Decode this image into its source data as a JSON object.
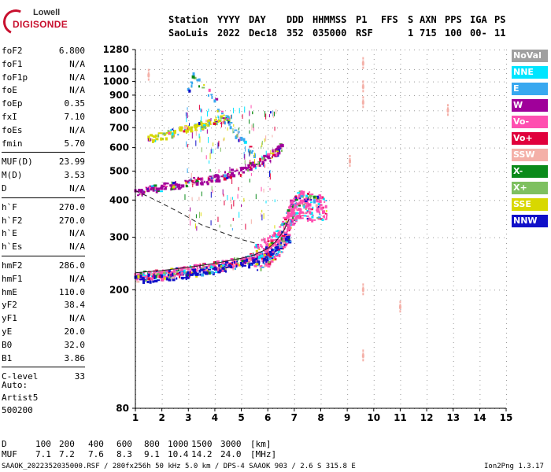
{
  "logo": {
    "line1": "Lowell",
    "line2": "DIGISONDE"
  },
  "header": {
    "labels": [
      "Station",
      "YYYY",
      "DAY",
      "DDD",
      "HHMMSS",
      "P1",
      "FFS",
      "S",
      "AXN",
      "PPS",
      "IGA",
      "PS"
    ],
    "values": [
      "SaoLuis",
      "2022",
      "Dec18",
      "352",
      "035000",
      "RSF",
      "1",
      "715",
      "100",
      "00-",
      "11"
    ]
  },
  "params": [
    {
      "name": "foF2",
      "value": "6.800"
    },
    {
      "name": "foF1",
      "value": "N/A"
    },
    {
      "name": "foF1p",
      "value": "N/A"
    },
    {
      "name": "foE",
      "value": "N/A"
    },
    {
      "name": "foEp",
      "value": "0.35"
    },
    {
      "name": "fxI",
      "value": "7.10"
    },
    {
      "name": "foEs",
      "value": "N/A"
    },
    {
      "name": "fmin",
      "value": "5.70"
    },
    {
      "name": "MUF(D)",
      "value": "23.99"
    },
    {
      "name": "M(D)",
      "value": "3.53"
    },
    {
      "name": "D",
      "value": "N/A"
    },
    {
      "name": "h`F",
      "value": "270.0"
    },
    {
      "name": "h`F2",
      "value": "270.0"
    },
    {
      "name": "h`E",
      "value": "N/A"
    },
    {
      "name": "h`Es",
      "value": "N/A"
    },
    {
      "name": "hmF2",
      "value": "286.0"
    },
    {
      "name": "hmF1",
      "value": "N/A"
    },
    {
      "name": "hmE",
      "value": "110.0"
    },
    {
      "name": "yF2",
      "value": "38.4"
    },
    {
      "name": "yF1",
      "value": "N/A"
    },
    {
      "name": "yE",
      "value": "20.0"
    },
    {
      "name": "B0",
      "value": "32.0"
    },
    {
      "name": "B1",
      "value": "3.86"
    },
    {
      "name": "C-level",
      "value": "33"
    }
  ],
  "auto": {
    "line1": "Auto:",
    "line2": "Artist5",
    "line3": "500200"
  },
  "legend": [
    {
      "label": "NoVal",
      "color": "#a0a0a0"
    },
    {
      "label": "NNE",
      "color": "#00e5ff"
    },
    {
      "label": "E",
      "color": "#38a8f0"
    },
    {
      "label": "W",
      "color": "#a0009a"
    },
    {
      "label": "Vo-",
      "color": "#ff4fb0"
    },
    {
      "label": "Vo+",
      "color": "#e0003c"
    },
    {
      "label": "SSW",
      "color": "#f4b0a8"
    },
    {
      "label": "X-",
      "color": "#0a8a1a"
    },
    {
      "label": "X+",
      "color": "#7ec060"
    },
    {
      "label": "SSE",
      "color": "#d8d800"
    },
    {
      "label": "NNW",
      "color": "#1010c8"
    }
  ],
  "chart_data": {
    "type": "scatter",
    "title": "",
    "xlabel": "",
    "ylabel": "",
    "xlim": [
      1,
      15
    ],
    "ylim": [
      80,
      1280
    ],
    "x_ticks": [
      1,
      2,
      3,
      4,
      5,
      6,
      7,
      8,
      9,
      10,
      11,
      12,
      13,
      14,
      15
    ],
    "y_ticks": [
      80,
      200,
      300,
      400,
      500,
      600,
      700,
      800,
      900,
      1000,
      1100,
      1280
    ],
    "y_scale": "log",
    "series": [
      {
        "trace": "F2 o-trace",
        "color": "#ff4fb0",
        "points": [
          [
            1.0,
            225
          ],
          [
            2.0,
            228
          ],
          [
            3.0,
            235
          ],
          [
            4.0,
            243
          ],
          [
            5.0,
            252
          ],
          [
            5.6,
            262
          ],
          [
            6.0,
            272
          ],
          [
            6.4,
            292
          ],
          [
            6.7,
            330
          ],
          [
            6.9,
            370
          ],
          [
            7.2,
            390
          ],
          [
            7.6,
            385
          ],
          [
            8.2,
            380
          ]
        ]
      },
      {
        "trace": "F2 echo band",
        "color": "#1010c8",
        "points": [
          [
            1.0,
            220
          ],
          [
            2.0,
            222
          ],
          [
            3.0,
            228
          ],
          [
            4.0,
            236
          ],
          [
            5.0,
            245
          ],
          [
            6.0,
            260
          ],
          [
            6.8,
            300
          ]
        ]
      },
      {
        "trace": "second hop",
        "color": "#a0009a",
        "points": [
          [
            1.0,
            430
          ],
          [
            2.0,
            445
          ],
          [
            3.0,
            460
          ],
          [
            4.0,
            480
          ],
          [
            5.0,
            505
          ],
          [
            6.0,
            560
          ],
          [
            6.5,
            610
          ]
        ]
      },
      {
        "trace": "third hop",
        "color": "#d8d800",
        "points": [
          [
            1.5,
            650
          ],
          [
            2.5,
            680
          ],
          [
            3.5,
            720
          ],
          [
            4.5,
            760
          ]
        ]
      },
      {
        "trace": "scattered high echoes",
        "color": "#38a8f0",
        "points": [
          [
            3.0,
            940
          ],
          [
            3.2,
            1060
          ],
          [
            4.0,
            860
          ],
          [
            4.6,
            700
          ],
          [
            5.0,
            640
          ],
          [
            5.5,
            560
          ]
        ]
      },
      {
        "trace": "isolated points",
        "color": "#f4b0a8",
        "points": [
          [
            9.6,
            1150
          ],
          [
            9.6,
            960
          ],
          [
            9.6,
            850
          ],
          [
            9.6,
            200
          ],
          [
            9.6,
            120
          ],
          [
            9.1,
            540
          ],
          [
            11.0,
            175
          ],
          [
            12.8,
            800
          ],
          [
            1.5,
            1050
          ]
        ]
      }
    ],
    "model_curves": [
      {
        "name": "profile",
        "style": "dashed",
        "points": [
          [
            1.0,
            430
          ],
          [
            1.5,
            410
          ],
          [
            2.0,
            390
          ],
          [
            2.5,
            370
          ],
          [
            3.0,
            350
          ],
          [
            3.5,
            330
          ],
          [
            4.0,
            318
          ],
          [
            4.5,
            306
          ],
          [
            5.0,
            295
          ],
          [
            5.5,
            287
          ]
        ]
      },
      {
        "name": "profile-lower",
        "style": "solid",
        "points": [
          [
            1.0,
            228
          ],
          [
            2.0,
            232
          ],
          [
            3.0,
            238
          ],
          [
            4.0,
            245
          ],
          [
            5.0,
            255
          ],
          [
            5.5,
            262
          ],
          [
            6.0,
            275
          ],
          [
            6.3,
            290
          ],
          [
            6.6,
            315
          ],
          [
            6.8,
            345
          ]
        ]
      }
    ]
  },
  "bottom": {
    "d_label": "D",
    "d_values": [
      "100",
      "200",
      "400",
      "600",
      "800",
      "1000",
      "1500",
      "3000",
      "[km]"
    ],
    "muf_label": "MUF",
    "muf_values": [
      "7.1",
      "7.2",
      "7.6",
      "8.3",
      "9.1",
      "10.4",
      "14.2",
      "24.0",
      "[MHz]"
    ],
    "footer_left": "SAAOK_2022352035000.RSF / 280fx256h 50 kHz 5.0 km / DPS-4 SAAOK 903 / 2.6 S 315.8 E",
    "footer_right": "Ion2Png 1.3.17"
  }
}
